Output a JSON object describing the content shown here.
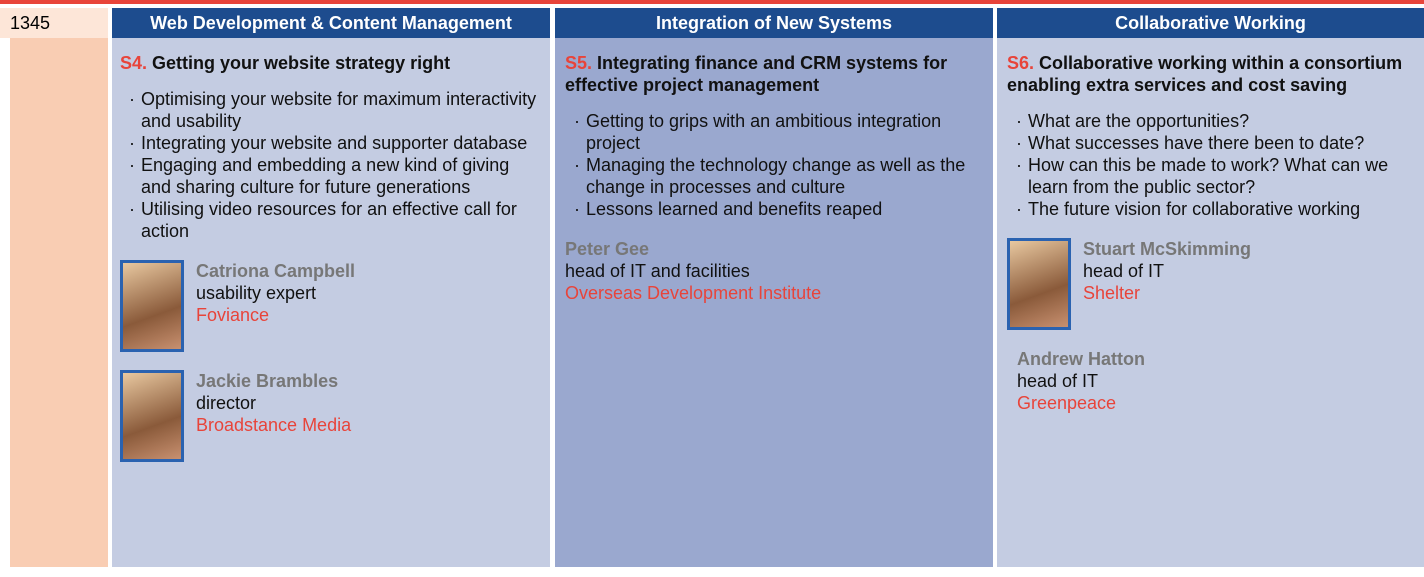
{
  "time": "1345",
  "sessions": [
    {
      "track": "Web Development & Content Management",
      "code": "S4.",
      "title": "Getting your website strategy right",
      "bullets": [
        "Optimising your website for maximum interactivity and usability",
        "Integrating your website and supporter database",
        "Engaging and embedding a new kind of giving and sharing culture for future generations",
        "Utilising video resources for an effective call for action"
      ],
      "speakers": [
        {
          "name": "Catriona Campbell",
          "role": "usability expert",
          "org": "Foviance",
          "photo": true
        },
        {
          "name": "Jackie Brambles",
          "role": "director",
          "org": "Broadstance Media",
          "photo": true
        }
      ]
    },
    {
      "track": "Integration of New Systems",
      "code": "S5.",
      "title": "Integrating finance and CRM systems for effective project management",
      "bullets": [
        "Getting to grips with an ambitious integration project",
        "Managing the technology change as well as the change in processes and culture",
        "Lessons learned and benefits reaped"
      ],
      "speakers": [
        {
          "name": "Peter Gee",
          "role": "head of IT and facilities",
          "org": "Overseas Development Institute",
          "photo": false
        }
      ]
    },
    {
      "track": "Collaborative Working",
      "code": "S6.",
      "title": "Collaborative working within a consortium enabling extra services and cost saving",
      "bullets": [
        "What are the opportunities?",
        "What successes have there been to date?",
        "How can this be made to work? What can we learn from the public sector?",
        "The future vision for collaborative working"
      ],
      "speakers": [
        {
          "name": "Stuart McSkimming",
          "role": "head of IT",
          "org": "Shelter",
          "photo": true
        },
        {
          "name": "Andrew Hatton",
          "role": "head of IT",
          "org": "Greenpeace",
          "photo": false
        }
      ]
    }
  ]
}
